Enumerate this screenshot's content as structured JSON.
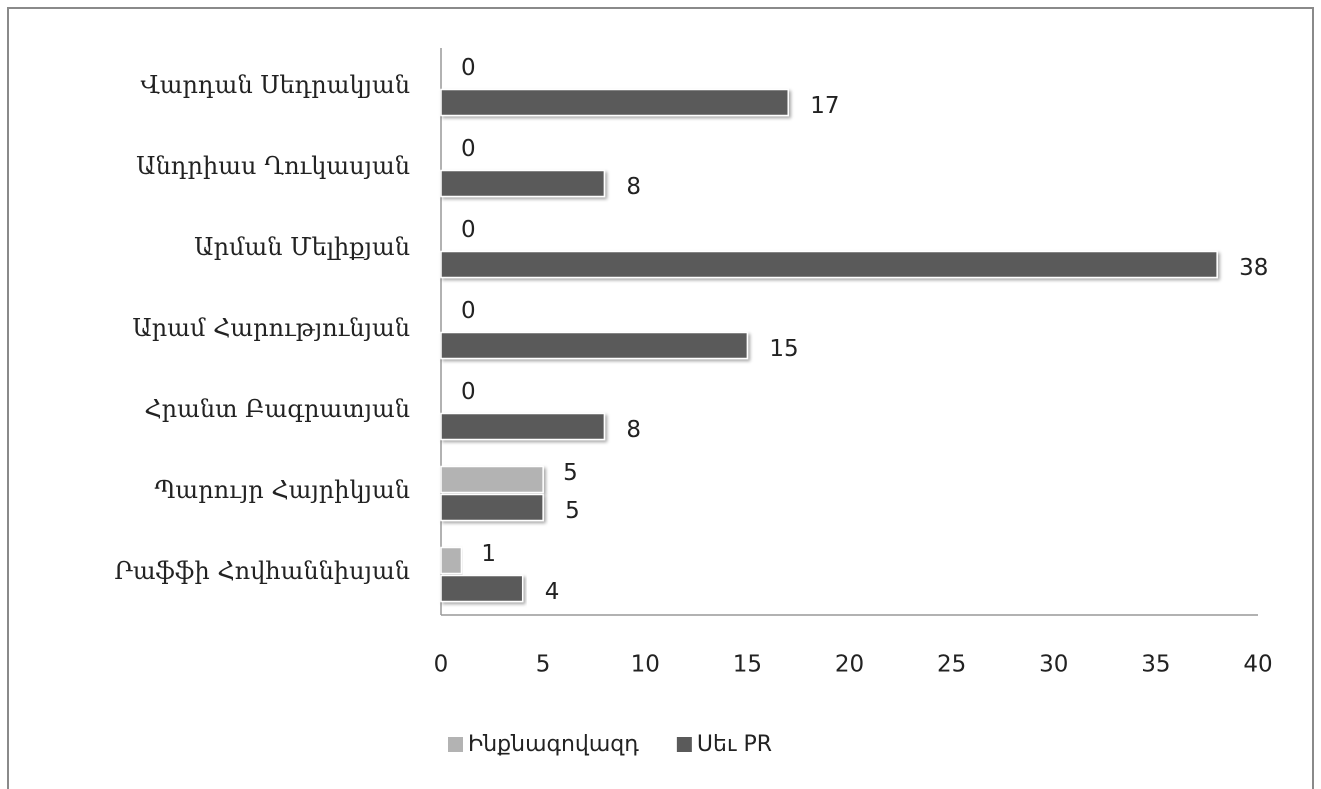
{
  "chart_data": {
    "type": "bar",
    "orientation": "horizontal",
    "categories": [
      "Վարդան Սեդրակյան",
      "Անդրիաս Ղուկասյան",
      "Արման Մելիքյան",
      "Արամ Հարությունյան",
      "Հրանտ Բագրատյան",
      "Պարույր Հայրիկյան",
      "Րաֆֆի Հովհաննիսյան"
    ],
    "series": [
      {
        "name": "Ինքնագովազդ",
        "color": "#b3b3b3",
        "values": [
          0,
          0,
          0,
          0,
          0,
          5,
          1
        ]
      },
      {
        "name": "Սեւ PR",
        "color": "#5a5a5a",
        "values": [
          17,
          8,
          38,
          15,
          8,
          5,
          4
        ]
      }
    ],
    "xlim": [
      0,
      40
    ],
    "xticks": [
      0,
      5,
      10,
      15,
      20,
      25,
      30,
      35,
      40
    ],
    "grid": false,
    "legend": "bottom"
  }
}
